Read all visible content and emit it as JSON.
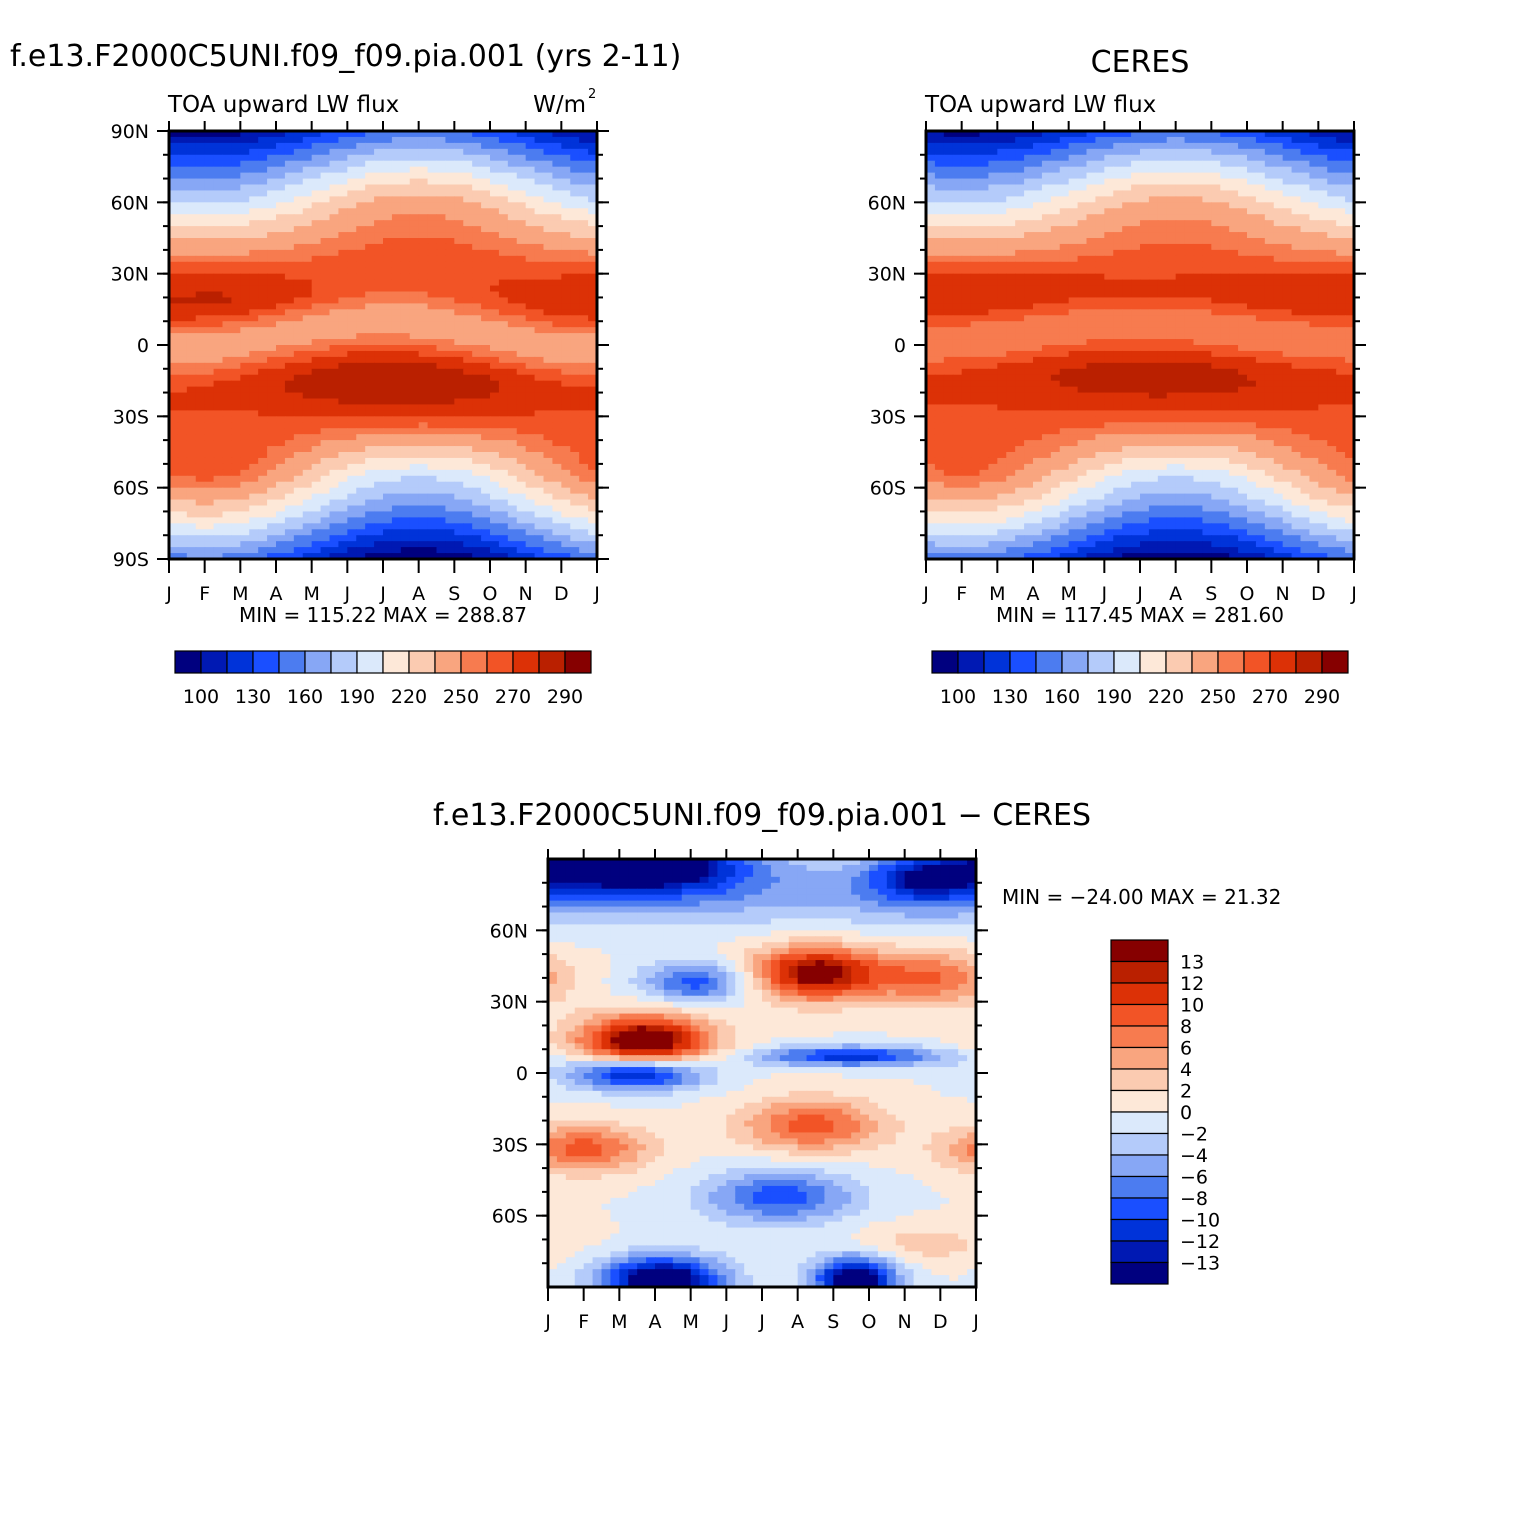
{
  "chart_data": [
    {
      "type": "heatmap",
      "id": "model",
      "title": "f.e13.F2000C5UNI.f09_f09.pia.001 (yrs 2-11)",
      "left_label": "TOA upward LW flux",
      "right_label": "W/m",
      "right_label_sup": "2",
      "x_ticks": [
        "J",
        "F",
        "M",
        "A",
        "M",
        "J",
        "J",
        "A",
        "S",
        "O",
        "N",
        "D",
        "J"
      ],
      "y_ticks": [
        "90N",
        "60N",
        "30N",
        "0",
        "30S",
        "60S",
        "90S"
      ],
      "y_tick_values": [
        90,
        60,
        30,
        0,
        -30,
        -60,
        -90
      ],
      "ylim": [
        -90,
        90
      ],
      "min": "115.22",
      "max": "288.87",
      "minmax_text": "MIN =  115.22  MAX =  288.87",
      "colorbar_labels": [
        "100",
        "130",
        "160",
        "190",
        "220",
        "250",
        "270",
        "290"
      ],
      "field": "model"
    },
    {
      "type": "heatmap",
      "id": "obs",
      "title": "CERES",
      "left_label": "TOA upward LW flux",
      "x_ticks": [
        "J",
        "F",
        "M",
        "A",
        "M",
        "J",
        "J",
        "A",
        "S",
        "O",
        "N",
        "D",
        "J"
      ],
      "y_ticks": [
        "60N",
        "30N",
        "0",
        "30S",
        "60S"
      ],
      "y_tick_values": [
        60,
        30,
        0,
        -30,
        -60
      ],
      "ylim": [
        -90,
        90
      ],
      "min": "117.45",
      "max": "281.60",
      "minmax_text": "MIN =  117.45  MAX =  281.60",
      "colorbar_labels": [
        "100",
        "130",
        "160",
        "190",
        "220",
        "250",
        "270",
        "290"
      ],
      "field": "obs"
    },
    {
      "type": "heatmap",
      "id": "diff",
      "title": "f.e13.F2000C5UNI.f09_f09.pia.001  −  CERES",
      "x_ticks": [
        "J",
        "F",
        "M",
        "A",
        "M",
        "J",
        "J",
        "A",
        "S",
        "O",
        "N",
        "D",
        "J"
      ],
      "y_ticks": [
        "60N",
        "30N",
        "0",
        "30S",
        "60S"
      ],
      "y_tick_values": [
        60,
        30,
        0,
        -30,
        -60
      ],
      "ylim": [
        -90,
        90
      ],
      "min": "−24.00",
      "max": "21.32",
      "minmax_text": "MIN = −24.00  MAX =   21.32",
      "colorbar_labels": [
        "13",
        "12",
        "10",
        "8",
        "6",
        "4",
        "2",
        "0",
        "−2",
        "−4",
        "−6",
        "−8",
        "−10",
        "−12",
        "−13"
      ],
      "field": "diff"
    }
  ],
  "colors": {
    "abs_palette": [
      "#00007f",
      "#0019b3",
      "#0033d9",
      "#1a4fff",
      "#4c7cf0",
      "#87a7f5",
      "#b4cbfa",
      "#dbe9fb",
      "#fde8d8",
      "#fbcbb1",
      "#f9a57f",
      "#f77b4f",
      "#f25426",
      "#dc3106",
      "#ba2000",
      "#860000"
    ],
    "diff_palette_top_to_bottom": [
      "#860000",
      "#ba2000",
      "#dc3106",
      "#f25426",
      "#f77b4f",
      "#f9a57f",
      "#fbcbb1",
      "#fde8d8",
      "#dbe9fb",
      "#b4cbfa",
      "#87a7f5",
      "#4c7cf0",
      "#1a4fff",
      "#0033d9",
      "#0019b3",
      "#00007f"
    ]
  }
}
